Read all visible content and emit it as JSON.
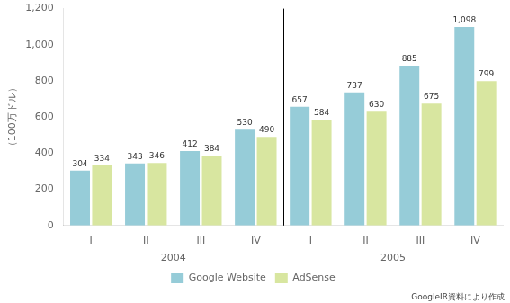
{
  "chart_data": {
    "type": "bar",
    "categories": [
      "I",
      "II",
      "III",
      "IV",
      "I",
      "II",
      "III",
      "IV"
    ],
    "series": [
      {
        "name": "Google Website",
        "color": "#96ccd8",
        "values": [
          304,
          343,
          412,
          530,
          657,
          737,
          885,
          1098
        ],
        "value_labels": [
          "304",
          "343",
          "412",
          "530",
          "657",
          "737",
          "885",
          "1,098"
        ]
      },
      {
        "name": "AdSense",
        "color": "#d8e6a0",
        "values": [
          334,
          346,
          384,
          490,
          584,
          630,
          675,
          799
        ],
        "value_labels": [
          "334",
          "346",
          "384",
          "490",
          "584",
          "630",
          "675",
          "799"
        ]
      }
    ],
    "ylabel": "（100万ドル）",
    "annotations": [
      "2004",
      "2005"
    ],
    "source": "GoogleIR資料により作成",
    "ylim": [
      0,
      1200
    ],
    "yticks": [
      0,
      200,
      400,
      600,
      800,
      {
        "value": 1000,
        "label": "1,000"
      },
      {
        "value": 1200,
        "label": "1,200"
      }
    ],
    "grid": false,
    "legend": "bottom",
    "data_labels": true
  }
}
